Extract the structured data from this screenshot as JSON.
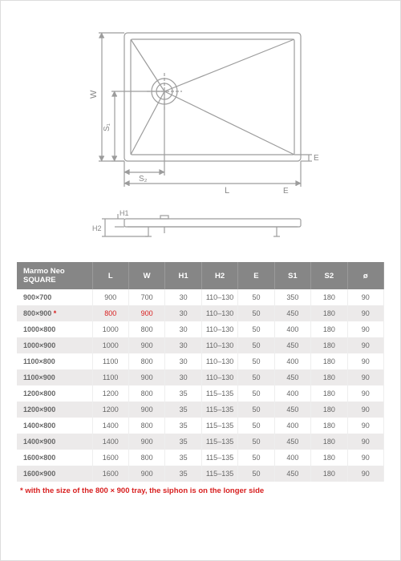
{
  "diagram": {
    "labels": {
      "W": "W",
      "S1": "S₁",
      "S2": "S₂",
      "L": "L",
      "E_right": "E",
      "E_bottom": "E",
      "H1": "H1",
      "H2": "H2"
    },
    "stroke": "#9c9c9c",
    "stroke_width": 1.2,
    "fill": "#ffffff",
    "dim_text_color": "#888888",
    "font_size": 10
  },
  "table": {
    "header_bg": "#868686",
    "header_fg": "#ffffff",
    "row_alt_bg": "#eceaea",
    "highlight_color": "#d82020",
    "columns": [
      "Marmo Neo SQUARE",
      "L",
      "W",
      "H1",
      "H2",
      "E",
      "S1",
      "S2",
      "ø"
    ],
    "rows": [
      {
        "name": "900×700",
        "L": "900",
        "W": "700",
        "H1": "30",
        "H2": "110–130",
        "E": "50",
        "S1": "350",
        "S2": "180",
        "d": "90",
        "highlight": false
      },
      {
        "name": "800×900",
        "star": true,
        "L": "800",
        "W": "900",
        "H1": "30",
        "H2": "110–130",
        "E": "50",
        "S1": "450",
        "S2": "180",
        "d": "90",
        "highlight": true
      },
      {
        "name": "1000×800",
        "L": "1000",
        "W": "800",
        "H1": "30",
        "H2": "110–130",
        "E": "50",
        "S1": "400",
        "S2": "180",
        "d": "90",
        "highlight": false
      },
      {
        "name": "1000×900",
        "L": "1000",
        "W": "900",
        "H1": "30",
        "H2": "110–130",
        "E": "50",
        "S1": "450",
        "S2": "180",
        "d": "90",
        "highlight": false
      },
      {
        "name": "1100×800",
        "L": "1100",
        "W": "800",
        "H1": "30",
        "H2": "110–130",
        "E": "50",
        "S1": "400",
        "S2": "180",
        "d": "90",
        "highlight": false
      },
      {
        "name": "1100×900",
        "L": "1100",
        "W": "900",
        "H1": "30",
        "H2": "110–130",
        "E": "50",
        "S1": "450",
        "S2": "180",
        "d": "90",
        "highlight": false
      },
      {
        "name": "1200×800",
        "L": "1200",
        "W": "800",
        "H1": "35",
        "H2": "115–135",
        "E": "50",
        "S1": "400",
        "S2": "180",
        "d": "90",
        "highlight": false
      },
      {
        "name": "1200×900",
        "L": "1200",
        "W": "900",
        "H1": "35",
        "H2": "115–135",
        "E": "50",
        "S1": "450",
        "S2": "180",
        "d": "90",
        "highlight": false
      },
      {
        "name": "1400×800",
        "L": "1400",
        "W": "800",
        "H1": "35",
        "H2": "115–135",
        "E": "50",
        "S1": "400",
        "S2": "180",
        "d": "90",
        "highlight": false
      },
      {
        "name": "1400×900",
        "L": "1400",
        "W": "900",
        "H1": "35",
        "H2": "115–135",
        "E": "50",
        "S1": "450",
        "S2": "180",
        "d": "90",
        "highlight": false
      },
      {
        "name": "1600×800",
        "L": "1600",
        "W": "800",
        "H1": "35",
        "H2": "115–135",
        "E": "50",
        "S1": "400",
        "S2": "180",
        "d": "90",
        "highlight": false
      },
      {
        "name": "1600×900",
        "L": "1600",
        "W": "900",
        "H1": "35",
        "H2": "115–135",
        "E": "50",
        "S1": "450",
        "S2": "180",
        "d": "90",
        "highlight": false
      }
    ]
  },
  "footnote": "* with the size of the 800 × 900 tray, the siphon is on the longer side"
}
